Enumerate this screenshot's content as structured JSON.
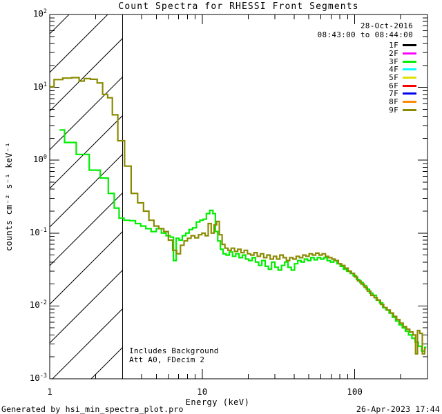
{
  "title": "Count Spectra for RHESSI Front Segments",
  "header": {
    "date": "28-Oct-2016",
    "time_range": "08:43:00 to 08:44:00"
  },
  "legend": {
    "items": [
      {
        "label": "1F",
        "color": "#000000"
      },
      {
        "label": "2F",
        "color": "#ff00ff"
      },
      {
        "label": "3F",
        "color": "#00ee00"
      },
      {
        "label": "4F",
        "color": "#00ffff"
      },
      {
        "label": "5F",
        "color": "#e0e000"
      },
      {
        "label": "6F",
        "color": "#ff0000"
      },
      {
        "label": "7F",
        "color": "#0000ee"
      },
      {
        "label": "8F",
        "color": "#ff8800"
      },
      {
        "label": "9F",
        "color": "#8a8a00"
      }
    ]
  },
  "plot_annotations": {
    "line1": "Includes Background",
    "line2": "Att A0, FDecim 2"
  },
  "footer": {
    "left": "Generated by hsi_min_spectra_plot.pro",
    "right": "26-Apr-2023 17:44"
  },
  "chart_data": {
    "type": "line",
    "mode": "histogram-steps",
    "title": "Count Spectra for RHESSI Front Segments",
    "xlabel": "Energy (keV)",
    "ylabel": "counts cm⁻² s⁻¹ keV⁻¹",
    "xscale": "log",
    "yscale": "log",
    "xlim": [
      1,
      300
    ],
    "ylim": [
      0.001,
      100
    ],
    "x_major_ticks": [
      1,
      10,
      100
    ],
    "x_tick_labels": [
      "1",
      "10",
      "100"
    ],
    "y_major_tick_exponents": [
      -3,
      -2,
      -1,
      0,
      1,
      2
    ],
    "grid": false,
    "legend_position": "top-right",
    "hatched_band_kev": [
      1,
      3
    ],
    "series": [
      {
        "name": "3F",
        "color": "#00ee00",
        "points": [
          [
            1.16,
            2.6
          ],
          [
            1.35,
            1.75
          ],
          [
            1.65,
            1.2
          ],
          [
            2.0,
            0.73
          ],
          [
            2.3,
            0.57
          ],
          [
            2.55,
            0.35
          ],
          [
            2.75,
            0.22
          ],
          [
            2.95,
            0.16
          ],
          [
            3.2,
            0.15
          ],
          [
            3.5,
            0.148
          ],
          [
            3.8,
            0.135
          ],
          [
            4.1,
            0.125
          ],
          [
            4.45,
            0.115
          ],
          [
            4.8,
            0.105
          ],
          [
            5.2,
            0.115
          ],
          [
            5.6,
            0.1
          ],
          [
            6.0,
            0.092
          ],
          [
            6.35,
            0.088
          ],
          [
            6.6,
            0.042
          ],
          [
            6.9,
            0.085
          ],
          [
            7.2,
            0.08
          ],
          [
            7.6,
            0.092
          ],
          [
            8.0,
            0.1
          ],
          [
            8.4,
            0.112
          ],
          [
            8.9,
            0.118
          ],
          [
            9.4,
            0.142
          ],
          [
            9.9,
            0.15
          ],
          [
            10.4,
            0.155
          ],
          [
            10.9,
            0.185
          ],
          [
            11.5,
            0.205
          ],
          [
            12.0,
            0.185
          ],
          [
            12.4,
            0.105
          ],
          [
            12.9,
            0.078
          ],
          [
            13.4,
            0.06
          ],
          [
            14.0,
            0.052
          ],
          [
            14.7,
            0.05
          ],
          [
            15.4,
            0.055
          ],
          [
            16.2,
            0.048
          ],
          [
            17.0,
            0.052
          ],
          [
            17.9,
            0.046
          ],
          [
            18.8,
            0.05
          ],
          [
            19.7,
            0.044
          ],
          [
            20.7,
            0.042
          ],
          [
            21.8,
            0.046
          ],
          [
            22.9,
            0.04
          ],
          [
            24.0,
            0.036
          ],
          [
            25.2,
            0.042
          ],
          [
            26.5,
            0.035
          ],
          [
            27.8,
            0.032
          ],
          [
            29.2,
            0.04
          ],
          [
            30.7,
            0.034
          ],
          [
            32.3,
            0.031
          ],
          [
            33.9,
            0.036
          ],
          [
            35.6,
            0.04
          ],
          [
            37.4,
            0.034
          ],
          [
            39.3,
            0.031
          ],
          [
            41.3,
            0.038
          ],
          [
            43.4,
            0.042
          ],
          [
            45.6,
            0.04
          ],
          [
            47.9,
            0.044
          ],
          [
            50.3,
            0.042
          ],
          [
            52.8,
            0.046
          ],
          [
            55.5,
            0.043
          ],
          [
            58.3,
            0.046
          ],
          [
            61.2,
            0.044
          ],
          [
            64.3,
            0.046
          ],
          [
            67.6,
            0.042
          ],
          [
            71.0,
            0.04
          ],
          [
            74.6,
            0.042
          ],
          [
            78.3,
            0.038
          ],
          [
            82.3,
            0.035
          ],
          [
            86.4,
            0.032
          ],
          [
            90.8,
            0.03
          ],
          [
            95.4,
            0.028
          ],
          [
            100,
            0.026
          ],
          [
            105,
            0.023
          ],
          [
            111,
            0.021
          ],
          [
            116,
            0.019
          ],
          [
            122,
            0.017
          ],
          [
            128,
            0.015
          ],
          [
            135,
            0.014
          ],
          [
            142,
            0.012
          ],
          [
            149,
            0.011
          ],
          [
            156,
            0.0095
          ],
          [
            164,
            0.0088
          ],
          [
            172,
            0.008
          ],
          [
            181,
            0.007
          ],
          [
            190,
            0.0062
          ],
          [
            200,
            0.0055
          ],
          [
            210,
            0.005
          ],
          [
            220,
            0.0045
          ],
          [
            231,
            0.004
          ],
          [
            243,
            0.0036
          ],
          [
            255,
            0.0032
          ],
          [
            268,
            0.0028
          ],
          [
            281,
            0.0024
          ],
          [
            295,
            0.0027
          ]
        ]
      },
      {
        "name": "9F",
        "color": "#8a8a00",
        "points": [
          [
            1.0,
            10.2
          ],
          [
            1.14,
            12.8
          ],
          [
            1.3,
            13.4
          ],
          [
            1.5,
            13.6
          ],
          [
            1.62,
            12.2
          ],
          [
            1.75,
            13.2
          ],
          [
            1.95,
            12.9
          ],
          [
            2.15,
            11.5
          ],
          [
            2.3,
            8.0
          ],
          [
            2.5,
            7.2
          ],
          [
            2.65,
            4.2
          ],
          [
            2.95,
            1.85
          ],
          [
            3.25,
            0.83
          ],
          [
            3.6,
            0.35
          ],
          [
            3.95,
            0.26
          ],
          [
            4.3,
            0.2
          ],
          [
            4.65,
            0.15
          ],
          [
            5.0,
            0.125
          ],
          [
            5.4,
            0.115
          ],
          [
            5.8,
            0.105
          ],
          [
            6.2,
            0.08
          ],
          [
            6.6,
            0.058
          ],
          [
            7.0,
            0.052
          ],
          [
            7.4,
            0.068
          ],
          [
            7.8,
            0.078
          ],
          [
            8.2,
            0.085
          ],
          [
            8.7,
            0.092
          ],
          [
            9.2,
            0.086
          ],
          [
            9.7,
            0.095
          ],
          [
            10.2,
            0.1
          ],
          [
            10.7,
            0.092
          ],
          [
            11.2,
            0.135
          ],
          [
            11.7,
            0.1
          ],
          [
            12.2,
            0.13
          ],
          [
            12.7,
            0.145
          ],
          [
            13.2,
            0.095
          ],
          [
            13.8,
            0.07
          ],
          [
            14.4,
            0.062
          ],
          [
            15.1,
            0.058
          ],
          [
            15.9,
            0.062
          ],
          [
            16.7,
            0.056
          ],
          [
            17.5,
            0.06
          ],
          [
            18.4,
            0.054
          ],
          [
            19.3,
            0.058
          ],
          [
            20.3,
            0.052
          ],
          [
            21.3,
            0.05
          ],
          [
            22.4,
            0.054
          ],
          [
            23.5,
            0.048
          ],
          [
            24.7,
            0.052
          ],
          [
            25.9,
            0.046
          ],
          [
            27.2,
            0.05
          ],
          [
            28.6,
            0.044
          ],
          [
            30.0,
            0.048
          ],
          [
            31.5,
            0.044
          ],
          [
            33.1,
            0.05
          ],
          [
            34.8,
            0.046
          ],
          [
            36.5,
            0.042
          ],
          [
            38.4,
            0.046
          ],
          [
            40.3,
            0.044
          ],
          [
            42.3,
            0.048
          ],
          [
            44.5,
            0.046
          ],
          [
            46.7,
            0.05
          ],
          [
            49.0,
            0.048
          ],
          [
            51.5,
            0.052
          ],
          [
            54.1,
            0.05
          ],
          [
            56.8,
            0.053
          ],
          [
            59.7,
            0.05
          ],
          [
            62.7,
            0.052
          ],
          [
            65.8,
            0.048
          ],
          [
            69.1,
            0.046
          ],
          [
            72.6,
            0.044
          ],
          [
            76.3,
            0.042
          ],
          [
            80.1,
            0.038
          ],
          [
            84.1,
            0.036
          ],
          [
            88.3,
            0.033
          ],
          [
            92.8,
            0.03
          ],
          [
            97.4,
            0.028
          ],
          [
            102,
            0.025
          ],
          [
            107,
            0.022
          ],
          [
            113,
            0.02
          ],
          [
            118,
            0.018
          ],
          [
            124,
            0.016
          ],
          [
            131,
            0.014
          ],
          [
            137,
            0.013
          ],
          [
            144,
            0.012
          ],
          [
            151,
            0.0105
          ],
          [
            159,
            0.0095
          ],
          [
            167,
            0.0088
          ],
          [
            175,
            0.008
          ],
          [
            184,
            0.0072
          ],
          [
            193,
            0.0065
          ],
          [
            203,
            0.0058
          ],
          [
            213,
            0.0052
          ],
          [
            224,
            0.0048
          ],
          [
            235,
            0.0044
          ],
          [
            247,
            0.004
          ],
          [
            254,
            0.0022
          ],
          [
            262,
            0.0046
          ],
          [
            272,
            0.0042
          ],
          [
            283,
            0.0022
          ],
          [
            292,
            0.0026
          ]
        ]
      }
    ]
  }
}
